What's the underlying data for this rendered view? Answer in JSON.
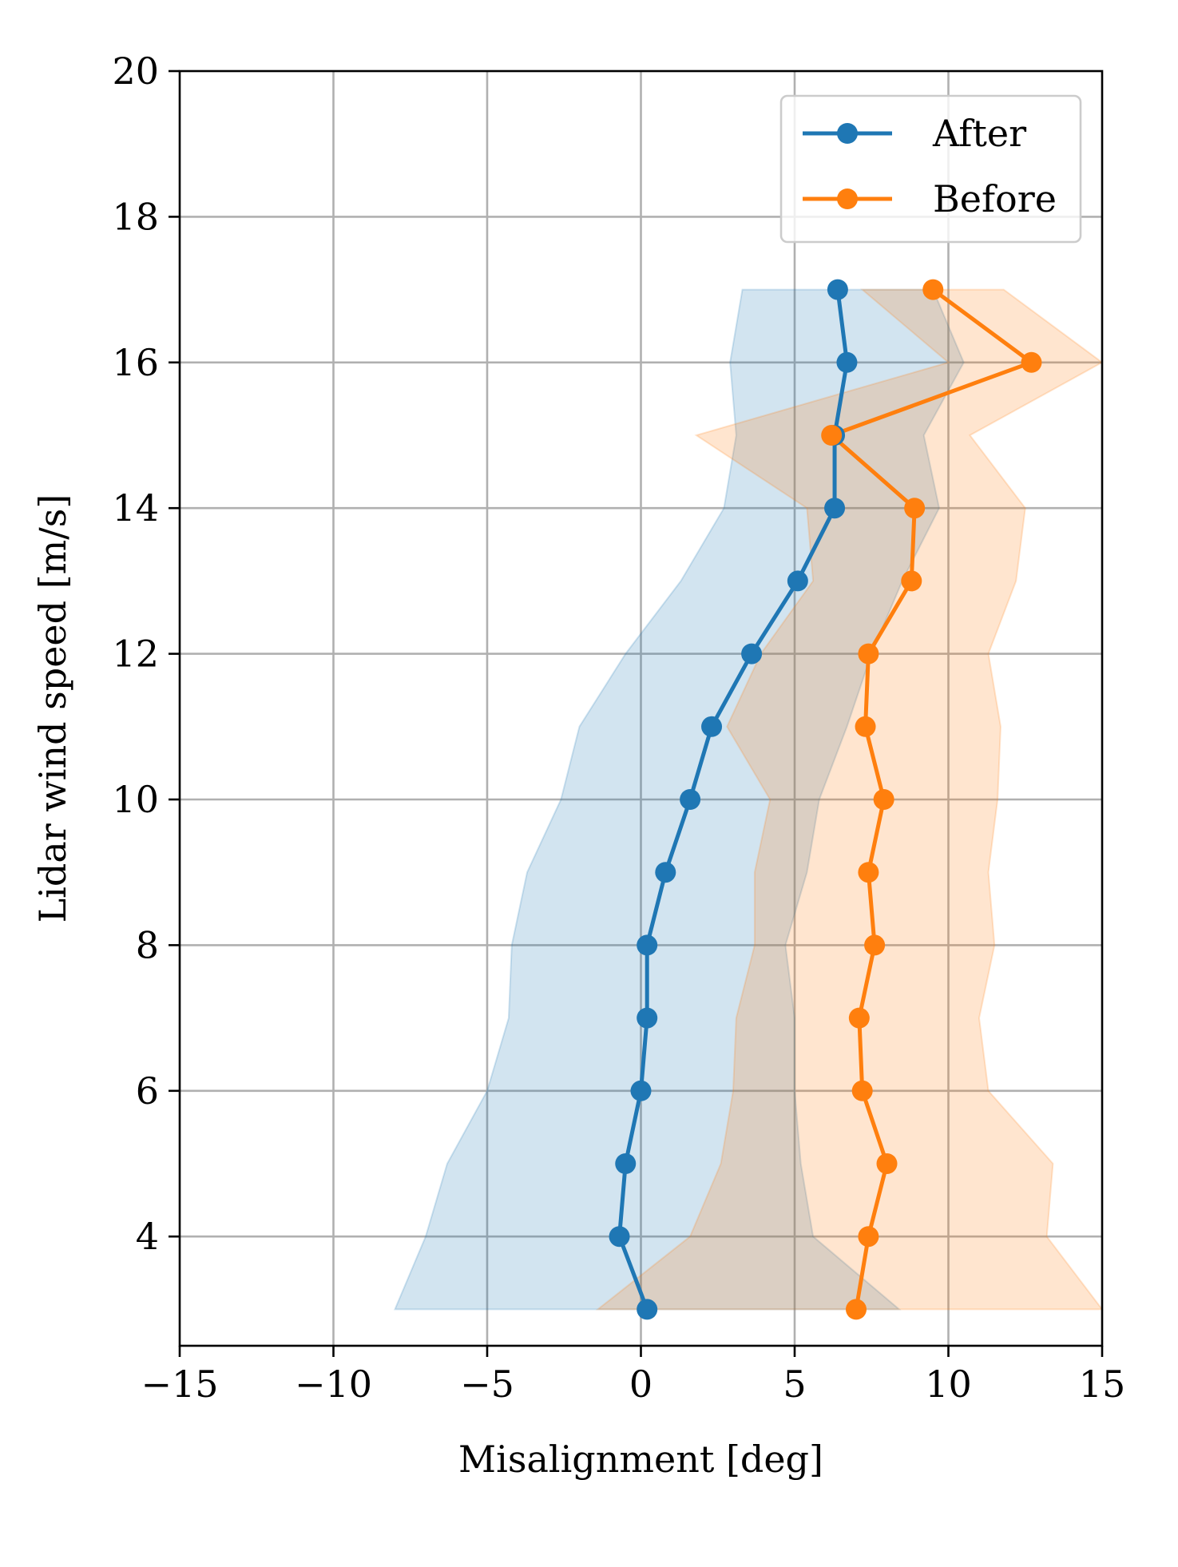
{
  "chart_data": {
    "type": "line",
    "xlabel": "Misalignment [deg]",
    "ylabel": "Lidar wind speed [m/s]",
    "xlim": [
      -15,
      15
    ],
    "ylim": [
      2.5,
      20
    ],
    "xticks": [
      -15,
      -10,
      -5,
      0,
      5,
      10,
      15
    ],
    "xtick_labels": [
      "−15",
      "−10",
      "−5",
      "0",
      "5",
      "10",
      "15"
    ],
    "yticks": [
      4,
      6,
      8,
      10,
      12,
      14,
      16,
      18,
      20
    ],
    "ytick_labels": [
      "4",
      "6",
      "8",
      "10",
      "12",
      "14",
      "16",
      "18",
      "20"
    ],
    "grid": true,
    "legend_position": "top-right",
    "series": [
      {
        "name": "After",
        "color": "#1f77b4",
        "y": [
          3,
          4,
          5,
          6,
          7,
          8,
          9,
          10,
          11,
          12,
          13,
          14,
          15,
          16,
          17
        ],
        "x": [
          0.2,
          -0.7,
          -0.5,
          0.0,
          0.2,
          0.2,
          0.8,
          1.6,
          2.3,
          3.6,
          5.1,
          6.3,
          6.3,
          6.7,
          6.4
        ],
        "band_lower": [
          -8.0,
          -7.0,
          -6.3,
          -5.0,
          -4.3,
          -4.2,
          -3.7,
          -2.6,
          -2.0,
          -0.5,
          1.3,
          2.7,
          3.1,
          2.9,
          3.3
        ],
        "band_upper": [
          8.4,
          5.6,
          5.2,
          5.0,
          5.0,
          4.7,
          5.4,
          5.8,
          6.7,
          7.5,
          8.5,
          9.7,
          9.2,
          10.5,
          9.5
        ]
      },
      {
        "name": "Before",
        "color": "#ff7f0e",
        "y": [
          3,
          4,
          5,
          6,
          7,
          8,
          9,
          10,
          11,
          12,
          13,
          14,
          15,
          16,
          17
        ],
        "x": [
          7.0,
          7.4,
          8.0,
          7.2,
          7.1,
          7.6,
          7.4,
          7.9,
          7.3,
          7.4,
          8.8,
          8.9,
          6.2,
          12.7,
          9.5
        ],
        "band_lower": [
          -1.4,
          1.6,
          2.6,
          3.0,
          3.1,
          3.7,
          3.7,
          4.2,
          2.8,
          3.9,
          5.6,
          5.4,
          1.8,
          10.0,
          7.2
        ],
        "band_upper": [
          15.0,
          13.2,
          13.4,
          11.3,
          11.0,
          11.5,
          11.3,
          11.6,
          11.7,
          11.3,
          12.2,
          12.5,
          10.7,
          15.0,
          11.8
        ]
      }
    ]
  }
}
